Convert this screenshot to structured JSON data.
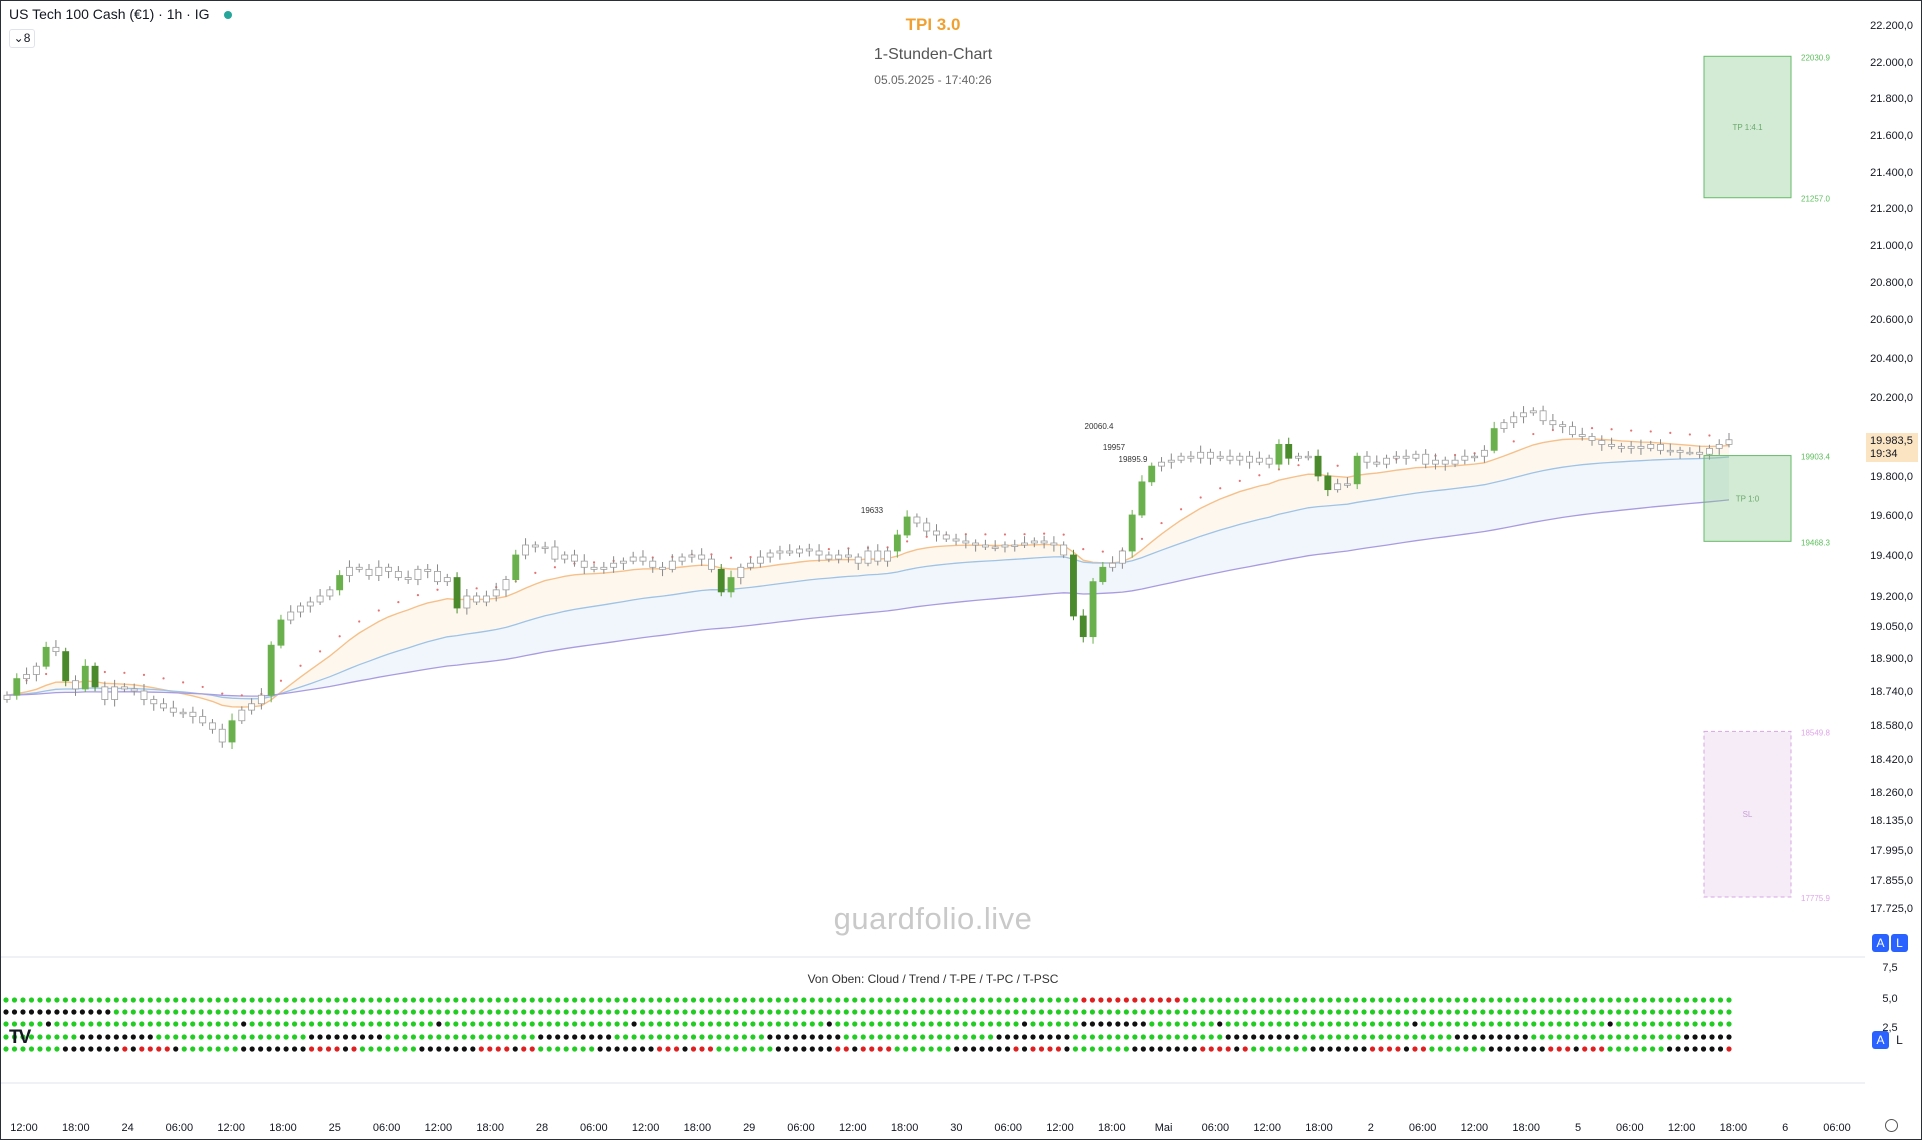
{
  "header": {
    "symbol_line": "US Tech 100 Cash (€1) · 1h · IG",
    "collapse_label": "8"
  },
  "titles": {
    "line1": "TPI 3.0",
    "line2": "1-Stunden-Chart",
    "line3": "05.05.2025 - 17:40:26"
  },
  "watermark": "guardfolio.live",
  "indicator_title": "Von Oben: Cloud / Trend / T-PE / T-PC / T-PSC",
  "buttons": {
    "auto": "A",
    "log": "L"
  },
  "price_badge": {
    "price": "19.983,5",
    "countdown": "19:34"
  },
  "colors": {
    "bull_strong": "#6ab04c",
    "bull_bright": "#2ecc40",
    "bear_strong": "#4b8a2c",
    "candle_neutral": "#ffffff",
    "candle_border": "#9e9e9e",
    "ema_orange": "#f6c08a",
    "ema_blue": "#9ec3e6",
    "ema_purple": "#a99be0",
    "trail_red": "#e57373",
    "dot_green": "#22cc22",
    "dot_black": "#111111",
    "dot_red": "#e02020"
  },
  "chart_data": {
    "type": "candlestick",
    "y_axis_labels": [
      "22.200,0",
      "22.000,0",
      "21.800,0",
      "21.600,0",
      "21.400,0",
      "21.200,0",
      "21.000,0",
      "20.800,0",
      "20.600,0",
      "20.400,0",
      "20.200,0",
      "19.800,0",
      "19.600,0",
      "19.400,0",
      "19.200,0",
      "19.050,0",
      "18.900,0",
      "18.740,0",
      "18.580,0",
      "18.420,0",
      "18.260,0",
      "18.135,0",
      "17.995,0",
      "17.855,0",
      "17.725,0"
    ],
    "ylim": [
      17700,
      22250
    ],
    "x_axis_labels": [
      "12:00",
      "18:00",
      "24",
      "06:00",
      "12:00",
      "18:00",
      "25",
      "06:00",
      "12:00",
      "18:00",
      "28",
      "06:00",
      "12:00",
      "18:00",
      "29",
      "06:00",
      "12:00",
      "18:00",
      "30",
      "06:00",
      "12:00",
      "18:00",
      "Mai",
      "06:00",
      "12:00",
      "18:00",
      "2",
      "06:00",
      "12:00",
      "18:00",
      "5",
      "06:00",
      "12:00",
      "18:00",
      "6",
      "06:00"
    ],
    "price_annotations": [
      "20060.4",
      "19957",
      "19895.9",
      "19633"
    ],
    "zones": [
      {
        "label": "TP 1:4.1",
        "top": "22030.9",
        "bottom": "21257.0",
        "kind": "tp"
      },
      {
        "label": "TP 1:0",
        "top": "19903.4",
        "bottom": "19468.3",
        "kind": "tp"
      },
      {
        "label": "SL",
        "top": "18549.8",
        "bottom": "17775.9",
        "kind": "sl"
      }
    ],
    "last_price": 19983.5,
    "closes": [
      18720,
      18800,
      18820,
      18860,
      18950,
      18930,
      18790,
      18750,
      18860,
      18760,
      18700,
      18760,
      18750,
      18740,
      18700,
      18680,
      18660,
      18640,
      18640,
      18620,
      18590,
      18560,
      18500,
      18600,
      18650,
      18680,
      18720,
      18960,
      19080,
      19120,
      19150,
      19170,
      19200,
      19230,
      19300,
      19340,
      19330,
      19300,
      19340,
      19320,
      19290,
      19280,
      19330,
      19320,
      19270,
      19290,
      19140,
      19200,
      19170,
      19200,
      19230,
      19280,
      19400,
      19450,
      19440,
      19440,
      19380,
      19400,
      19370,
      19340,
      19330,
      19340,
      19360,
      19370,
      19390,
      19370,
      19340,
      19330,
      19370,
      19390,
      19400,
      19380,
      19330,
      19220,
      19290,
      19340,
      19360,
      19390,
      19410,
      19420,
      19410,
      19430,
      19420,
      19400,
      19380,
      19400,
      19390,
      19360,
      19420,
      19370,
      19420,
      19500,
      19590,
      19560,
      19520,
      19500,
      19480,
      19470,
      19460,
      19450,
      19440,
      19440,
      19450,
      19450,
      19460,
      19470,
      19460,
      19450,
      19400,
      19100,
      19000,
      19270,
      19340,
      19360,
      19420,
      19600,
      19770,
      19850,
      19870,
      19880,
      19900,
      19890,
      19920,
      19890,
      19900,
      19880,
      19900,
      19870,
      19890,
      19860,
      19960,
      19890,
      19900,
      19900,
      19800,
      19730,
      19760,
      19760,
      19900,
      19870,
      19860,
      19890,
      19900,
      19890,
      19910,
      19860,
      19880,
      19860,
      19880,
      19900,
      19900,
      19930,
      20040,
      20070,
      20100,
      20120,
      20130,
      20080,
      20060,
      20050,
      20010,
      20000,
      19980,
      19960,
      19950,
      19940,
      19950,
      19940,
      19960,
      19930,
      19930,
      19920,
      19920,
      19910,
      19940,
      19960,
      19983.5
    ],
    "series": [
      {
        "name": "",
        "kind": "ema_fast"
      },
      {
        "name": "",
        "kind": "ema_mid"
      },
      {
        "name": "",
        "kind": "ema_slow"
      },
      {
        "name": "",
        "kind": "trail_stop"
      }
    ],
    "indicator_y_labels": [
      "7,5",
      "5,0",
      "2,5"
    ],
    "indicator_rows": 5
  }
}
